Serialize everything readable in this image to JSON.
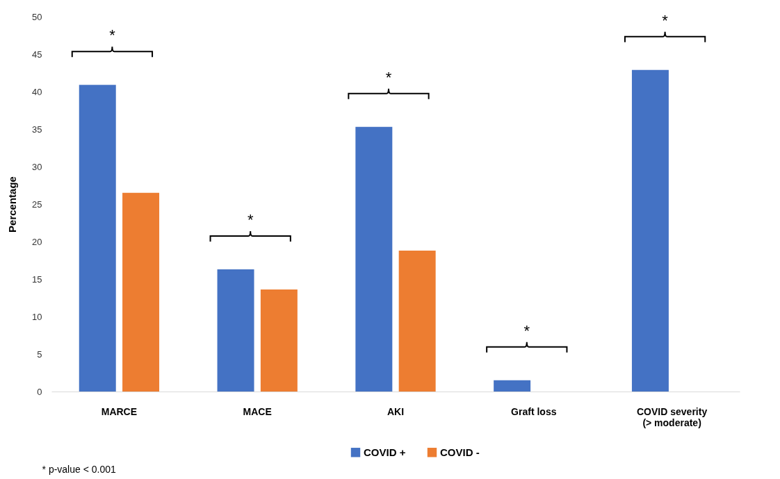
{
  "chart_data": {
    "type": "bar",
    "ylabel": "Percentage",
    "categories": [
      "MARCE",
      "MACE",
      "AKI",
      "Graft loss",
      "COVID severity (> moderate)"
    ],
    "series": [
      {
        "name": "COVID +",
        "color": "#4472c4",
        "values": [
          40.9,
          16.3,
          35.3,
          1.5,
          42.9
        ]
      },
      {
        "name": "COVID -",
        "color": "#ed7d31",
        "values": [
          26.5,
          13.6,
          18.8,
          null,
          null
        ]
      }
    ],
    "ylim": [
      0,
      50
    ],
    "yticks": [
      0,
      5,
      10,
      15,
      20,
      25,
      30,
      35,
      40,
      45,
      50
    ],
    "grid": false,
    "legend": "bottom",
    "annotations": [
      "*",
      "*",
      "*",
      "*",
      "*",
      "* p-value < 0.001"
    ]
  }
}
